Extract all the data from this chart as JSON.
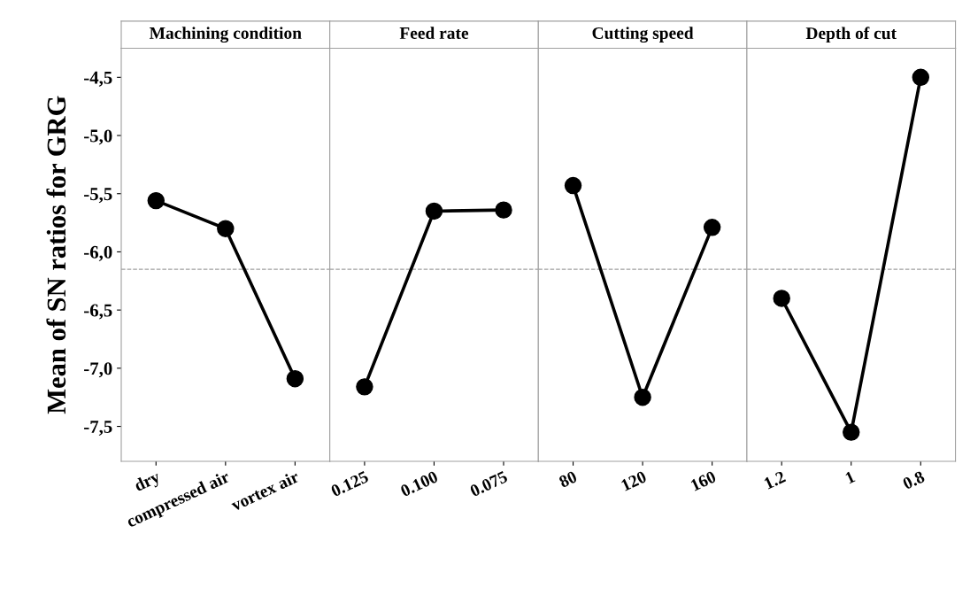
{
  "chart_data": [
    {
      "type": "line",
      "title": "Machining condition",
      "ylabel": "Mean of SN ratios for GRG",
      "categories": [
        "dry",
        "compressed air",
        "vortex air"
      ],
      "series": [
        {
          "color": "#000000",
          "values": [
            -5.56,
            -5.8,
            -7.09
          ]
        }
      ],
      "ylim": [
        -7.8,
        -4.25
      ],
      "yticks": [
        {
          "value": -4.5,
          "label": "-4,5"
        },
        {
          "value": -5.0,
          "label": "-5,0"
        },
        {
          "value": -5.5,
          "label": "-5,5"
        },
        {
          "value": -6.0,
          "label": "-6,0"
        },
        {
          "value": -6.5,
          "label": "-6,5"
        },
        {
          "value": -7.0,
          "label": "-7,0"
        },
        {
          "value": -7.5,
          "label": "-7,5"
        }
      ],
      "marker": "circle",
      "line_style": "solid",
      "grid": false,
      "ref_lines": [
        {
          "axis": "y",
          "value": -6.15,
          "color": "#a0a0a0",
          "line_style": "dashed"
        }
      ]
    },
    {
      "type": "line",
      "title": "Feed rate",
      "categories": [
        "0.125",
        "0.100",
        "0.075"
      ],
      "series": [
        {
          "color": "#000000",
          "values": [
            -7.16,
            -5.65,
            -5.64
          ]
        }
      ],
      "ylim": [
        -7.8,
        -4.25
      ],
      "tick_labels": "x",
      "marker": "circle",
      "line_style": "solid",
      "grid": false,
      "ref_lines": [
        {
          "axis": "y",
          "value": -6.15,
          "color": "#a0a0a0",
          "line_style": "dashed"
        }
      ]
    },
    {
      "type": "line",
      "title": "Cutting speed",
      "categories": [
        "80",
        "120",
        "160"
      ],
      "series": [
        {
          "color": "#000000",
          "values": [
            -5.43,
            -7.25,
            -5.79
          ]
        }
      ],
      "ylim": [
        -7.8,
        -4.25
      ],
      "tick_labels": "x",
      "marker": "circle",
      "line_style": "solid",
      "grid": false,
      "ref_lines": [
        {
          "axis": "y",
          "value": -6.15,
          "color": "#a0a0a0",
          "line_style": "dashed"
        }
      ]
    },
    {
      "type": "line",
      "title": "Depth of cut",
      "categories": [
        "1.2",
        "1",
        "0.8"
      ],
      "series": [
        {
          "color": "#000000",
          "values": [
            -6.4,
            -7.55,
            -4.5
          ]
        }
      ],
      "ylim": [
        -7.8,
        -4.25
      ],
      "tick_labels": "x",
      "marker": "circle",
      "line_style": "solid",
      "grid": false,
      "ref_lines": [
        {
          "axis": "y",
          "value": -6.15,
          "color": "#a0a0a0",
          "line_style": "dashed"
        }
      ]
    }
  ]
}
